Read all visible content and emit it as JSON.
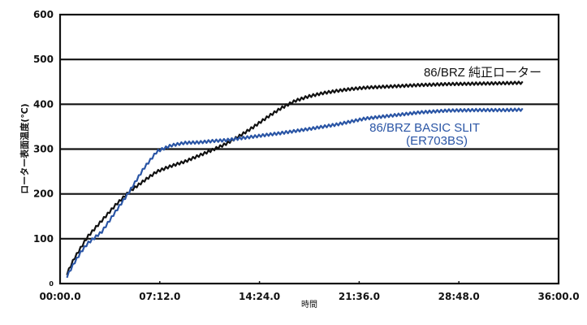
{
  "chart_data": {
    "type": "line",
    "title": "",
    "xlabel": "時間",
    "ylabel": "ローター表面温度(℃)",
    "x_unit": "minutes",
    "xlim": [
      0,
      36
    ],
    "ylim": [
      0,
      600
    ],
    "grid": {
      "horizontal": true,
      "vertical": false
    },
    "x_ticks": [
      {
        "value": 0,
        "label": "00:00.0"
      },
      {
        "value": 7.2,
        "label": "07:12.0"
      },
      {
        "value": 14.4,
        "label": "14:24.0"
      },
      {
        "value": 21.6,
        "label": "21:36.0"
      },
      {
        "value": 28.8,
        "label": "28:48.0"
      },
      {
        "value": 36,
        "label": "36:00.0"
      }
    ],
    "y_ticks": [
      {
        "value": 0,
        "label": "0"
      },
      {
        "value": 100,
        "label": "100"
      },
      {
        "value": 200,
        "label": "200"
      },
      {
        "value": 300,
        "label": "300"
      },
      {
        "value": 400,
        "label": "400"
      },
      {
        "value": 500,
        "label": "500"
      },
      {
        "value": 600,
        "label": "600"
      }
    ],
    "legend_position": "inline-right",
    "series": [
      {
        "name": "86/BRZ 純正ローター",
        "label_lines": [
          "86/BRZ 純正ローター"
        ],
        "color": "#111111",
        "x": [
          0.5,
          1.0,
          1.5,
          2.0,
          3.0,
          4.0,
          5.0,
          6.0,
          7.0,
          8.0,
          9.0,
          10.0,
          11.0,
          12.0,
          13.0,
          14.0,
          15.0,
          16.0,
          17.0,
          18.0,
          19.0,
          20.0,
          21.0,
          22.0,
          24.0,
          26.0,
          28.0,
          30.0,
          32.0,
          33.5
        ],
        "y": [
          22,
          55,
          80,
          105,
          140,
          175,
          205,
          228,
          250,
          262,
          272,
          285,
          298,
          312,
          330,
          350,
          372,
          392,
          408,
          418,
          425,
          430,
          434,
          437,
          440,
          443,
          445,
          446,
          447,
          448
        ]
      },
      {
        "name": "86/BRZ BASIC SLIT (ER703BS)",
        "label_lines": [
          "86/BRZ BASIC SLIT",
          "(ER703BS)"
        ],
        "color": "#2a55a5",
        "x": [
          0.5,
          1.0,
          1.5,
          2.0,
          3.0,
          4.0,
          5.0,
          6.0,
          7.0,
          8.0,
          9.0,
          10.0,
          11.0,
          12.0,
          14.0,
          16.0,
          18.0,
          20.0,
          22.0,
          24.0,
          26.0,
          28.0,
          30.0,
          32.0,
          33.5
        ],
        "y": [
          16,
          45,
          70,
          90,
          115,
          160,
          205,
          255,
          295,
          308,
          314,
          315,
          318,
          320,
          328,
          336,
          345,
          355,
          368,
          375,
          382,
          386,
          387,
          387,
          388
        ]
      }
    ]
  }
}
